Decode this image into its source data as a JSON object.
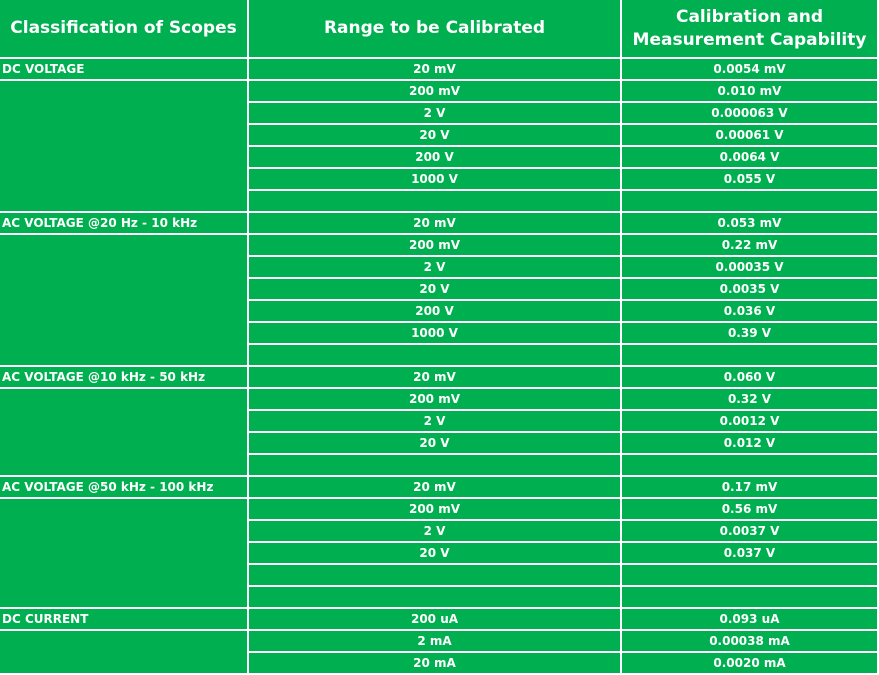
{
  "headers": {
    "scope": "Classification of Scopes",
    "range": "Range to be Calibrated",
    "cmc": "Calibration and Measurement Capability"
  },
  "groups": [
    {
      "scope": "DC VOLTAGE",
      "rows": [
        {
          "range": "20 mV",
          "cmc": "0.0054 mV"
        },
        {
          "range": "200 mV",
          "cmc": "0.010 mV"
        },
        {
          "range": "2 V",
          "cmc": "0.000063 V"
        },
        {
          "range": "20 V",
          "cmc": "0.00061 V"
        },
        {
          "range": "200 V",
          "cmc": "0.0064 V"
        },
        {
          "range": "1000 V",
          "cmc": "0.055 V"
        },
        {
          "range": "",
          "cmc": ""
        }
      ]
    },
    {
      "scope": "AC VOLTAGE @20 Hz - 10 kHz",
      "rows": [
        {
          "range": "20 mV",
          "cmc": "0.053 mV"
        },
        {
          "range": "200 mV",
          "cmc": "0.22 mV"
        },
        {
          "range": "2 V",
          "cmc": "0.00035 V"
        },
        {
          "range": "20 V",
          "cmc": "0.0035 V"
        },
        {
          "range": "200 V",
          "cmc": "0.036 V"
        },
        {
          "range": "1000 V",
          "cmc": "0.39 V"
        },
        {
          "range": "",
          "cmc": ""
        }
      ]
    },
    {
      "scope": "AC VOLTAGE @10 kHz - 50 kHz",
      "rows": [
        {
          "range": "20 mV",
          "cmc": "0.060 V"
        },
        {
          "range": "200 mV",
          "cmc": "0.32 V"
        },
        {
          "range": "2 V",
          "cmc": "0.0012 V"
        },
        {
          "range": "20 V",
          "cmc": "0.012 V"
        },
        {
          "range": "",
          "cmc": ""
        }
      ]
    },
    {
      "scope": "AC VOLTAGE @50 kHz - 100 kHz",
      "rows": [
        {
          "range": "20 mV",
          "cmc": "0.17 mV"
        },
        {
          "range": "200 mV",
          "cmc": "0.56 mV"
        },
        {
          "range": "2 V",
          "cmc": "0.0037 V"
        },
        {
          "range": "20 V",
          "cmc": "0.037 V"
        },
        {
          "range": "",
          "cmc": ""
        },
        {
          "range": "",
          "cmc": ""
        }
      ]
    },
    {
      "scope": "DC CURRENT",
      "rows": [
        {
          "range": "200 uA",
          "cmc": "0.093 uA"
        },
        {
          "range": "2 mA",
          "cmc": "0.00038 mA"
        },
        {
          "range": "20 mA",
          "cmc": "0.0020 mA"
        }
      ]
    }
  ]
}
